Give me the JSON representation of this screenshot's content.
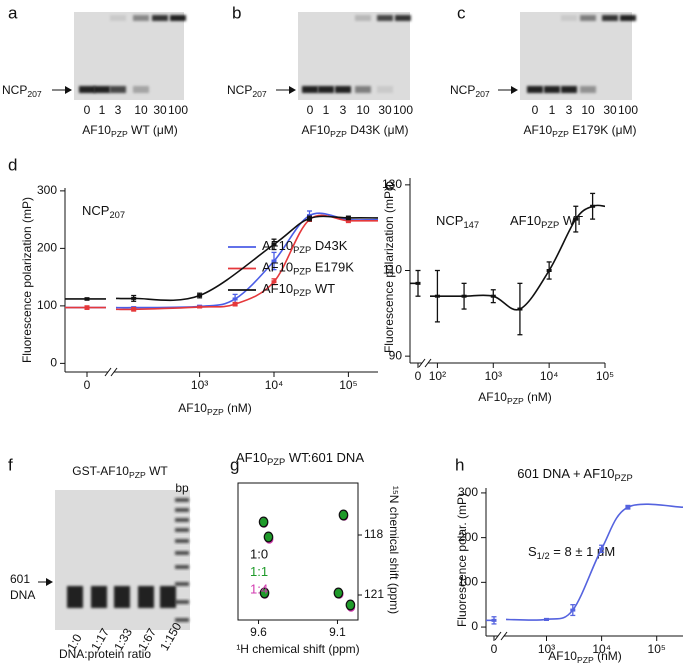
{
  "gels": [
    {
      "panel": "a",
      "marker": [
        "NCP",
        "207"
      ],
      "lanes": [
        "0",
        "1",
        "3",
        "10",
        "30",
        "100"
      ],
      "xlabel": [
        "AF10",
        "PZP",
        " WT (μM)"
      ]
    },
    {
      "panel": "b",
      "marker": [
        "NCP",
        "207"
      ],
      "lanes": [
        "0",
        "1",
        "3",
        "10",
        "30",
        "100"
      ],
      "xlabel": [
        "AF10",
        "PZP",
        " D43K (μM)"
      ]
    },
    {
      "panel": "c",
      "marker": [
        "NCP",
        "207"
      ],
      "lanes": [
        "0",
        "1",
        "3",
        "10",
        "30",
        "100"
      ],
      "xlabel": [
        "AF10",
        "PZP",
        " E179K (μM)"
      ]
    },
    {
      "panel": "f",
      "title": [
        "GST-AF10",
        "PZP",
        " WT"
      ],
      "ladder": "bp",
      "marker_lines": [
        "601",
        "DNA"
      ],
      "lanes": [
        "1:0",
        "1:17",
        "1:33",
        "1:67",
        "1:150"
      ],
      "xlabel": "DNA:protein ratio"
    }
  ],
  "chart_data": [
    {
      "panel": "d",
      "type": "line",
      "annotations": [
        [
          "NCP",
          "207"
        ]
      ],
      "xlabel": [
        "AF10",
        "PZP",
        " (nM)"
      ],
      "ylabel": "Fluorescence polarization (mP)",
      "xscale": "log",
      "xlim": [
        80,
        250000
      ],
      "xticks": [
        0,
        {
          "value": 1000,
          "label": "10³"
        },
        {
          "value": 10000,
          "label": "10⁴"
        },
        {
          "value": 100000,
          "label": "10⁵"
        }
      ],
      "ylim": [
        -15,
        305
      ],
      "yticks": [
        0,
        100,
        200,
        300
      ],
      "legend": "right",
      "x": [
        0,
        130,
        1000,
        3000,
        10000,
        30000,
        100000
      ],
      "series": [
        {
          "name": [
            "AF10",
            "PZP",
            " D43K"
          ],
          "color": "#4b5de6",
          "values": [
            97,
            97,
            99,
            112,
            178,
            257,
            250
          ],
          "errors": [
            2,
            1,
            2,
            8,
            15,
            8,
            3
          ]
        },
        {
          "name": [
            "AF10",
            "PZP",
            " E179K"
          ],
          "color": "#e5383b",
          "values": [
            97,
            94,
            98,
            103,
            142,
            250,
            248
          ],
          "errors": [
            3,
            3,
            1,
            3,
            5,
            3,
            3
          ]
        },
        {
          "name": [
            "AF10",
            "PZP",
            " WT"
          ],
          "color": "#111111",
          "values": [
            112,
            113,
            118,
            null,
            207,
            252,
            253
          ],
          "errors": [
            2,
            5,
            4,
            null,
            9,
            4,
            3
          ]
        }
      ]
    },
    {
      "panel": "e",
      "type": "line",
      "annotations": [
        [
          "NCP",
          "147"
        ],
        [
          "AF10",
          "PZP",
          " WT"
        ]
      ],
      "xlabel": [
        "AF10",
        "PZP",
        " (nM)"
      ],
      "ylabel": "Fluorescence polarization (mP)",
      "xscale": "log",
      "xlim": [
        80,
        100000
      ],
      "xticks": [
        0,
        {
          "value": 100,
          "label": "10²"
        },
        {
          "value": 1000,
          "label": "10³"
        },
        {
          "value": 10000,
          "label": "10⁴"
        },
        {
          "value": 100000,
          "label": "10⁵"
        }
      ],
      "ylim": [
        88.4,
        131.6
      ],
      "yticks": [
        90,
        110,
        130
      ],
      "x": [
        0,
        100,
        300,
        1000,
        3000,
        10000,
        30000,
        60000
      ],
      "series": [
        {
          "color": "#111111",
          "values": [
            107,
            104,
            104,
            104,
            101,
            110,
            122,
            125
          ],
          "errors": [
            3,
            6,
            3,
            1.5,
            6,
            2,
            3,
            3
          ]
        }
      ]
    },
    {
      "panel": "g",
      "type": "scatter",
      "title": [
        "AF10",
        "PZP",
        " WT:601 DNA"
      ],
      "xlabel": "¹H chemical shift (ppm)",
      "ylabel": "¹⁵N chemical shift (ppm)",
      "xlim": [
        9.73,
        8.97
      ],
      "xticks": [
        9.6,
        9.1
      ],
      "ylim": [
        122.25,
        115.4
      ],
      "yticks": [
        118,
        121
      ],
      "yaxis_side": "right",
      "series": [
        {
          "name": "1:0",
          "color": "#111111",
          "x": [
            9.568,
            9.537,
            9.062,
            9.562,
            9.094,
            9.018
          ],
          "values": [
            117.35,
            118.1,
            117.0,
            120.9,
            120.9,
            121.5
          ]
        },
        {
          "name": "1:1",
          "color": "#1f9a2a",
          "x": [
            9.566,
            9.535,
            9.06,
            9.561,
            9.092,
            9.016
          ],
          "values": [
            117.38,
            118.12,
            117.02,
            120.92,
            120.92,
            121.52
          ]
        },
        {
          "name": "1:4",
          "color": "#d23bb0",
          "x": [
            9.565,
            9.532,
            9.058,
            9.56,
            9.088,
            9.014
          ],
          "values": [
            117.4,
            118.2,
            117.05,
            120.95,
            120.95,
            121.6
          ]
        }
      ]
    },
    {
      "panel": "h",
      "type": "line",
      "title": [
        "601 DNA + AF10",
        "PZP"
      ],
      "annotations": [
        [
          "S",
          "1/2",
          " = 8 ± 1 μM"
        ]
      ],
      "xlabel": [
        "AF10",
        "PZP",
        " (nM)"
      ],
      "ylabel": "Fluorescence polar. (mP)",
      "xscale": "log",
      "xlim": [
        200,
        300000
      ],
      "xticks": [
        0,
        {
          "value": 1000,
          "label": "10³"
        },
        {
          "value": 10000,
          "label": "10⁴"
        },
        {
          "value": 100000,
          "label": "10⁵"
        }
      ],
      "ylim": [
        -20,
        311
      ],
      "yticks": [
        0,
        100,
        200,
        300
      ],
      "x": [
        0,
        1000,
        3000,
        10000,
        30000
      ],
      "series": [
        {
          "color": "#5563df",
          "values": [
            15,
            17,
            38,
            175,
            268
          ],
          "errors": [
            8,
            2,
            12,
            8,
            4
          ]
        }
      ]
    }
  ]
}
